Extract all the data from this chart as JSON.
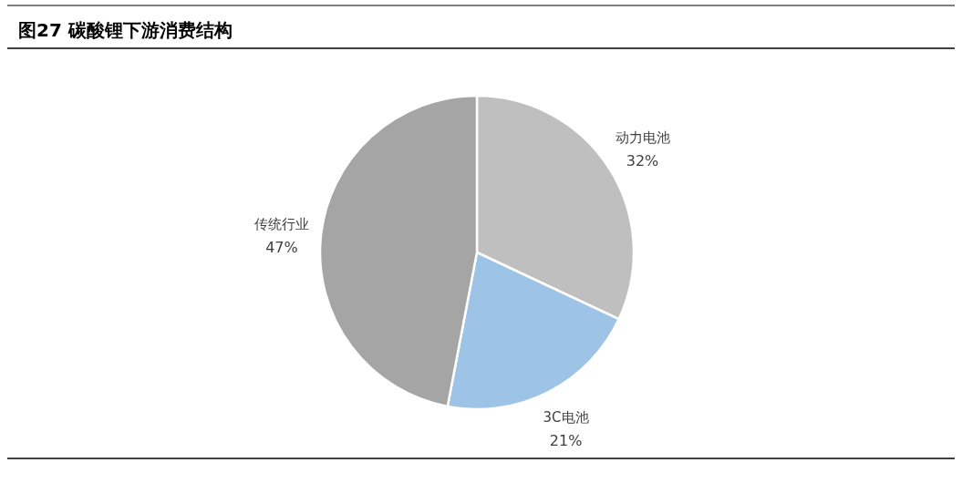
{
  "chart_data": {
    "type": "pie",
    "title": "图27 碳酸锂下游消费结构",
    "categories": [
      "动力电池",
      "3C电池",
      "传统行业"
    ],
    "values": [
      32,
      21,
      47
    ],
    "colors": [
      "#bfbfbf",
      "#9dc3e6",
      "#a5a5a5"
    ],
    "value_labels": [
      "32%",
      "21%",
      "47%"
    ]
  }
}
